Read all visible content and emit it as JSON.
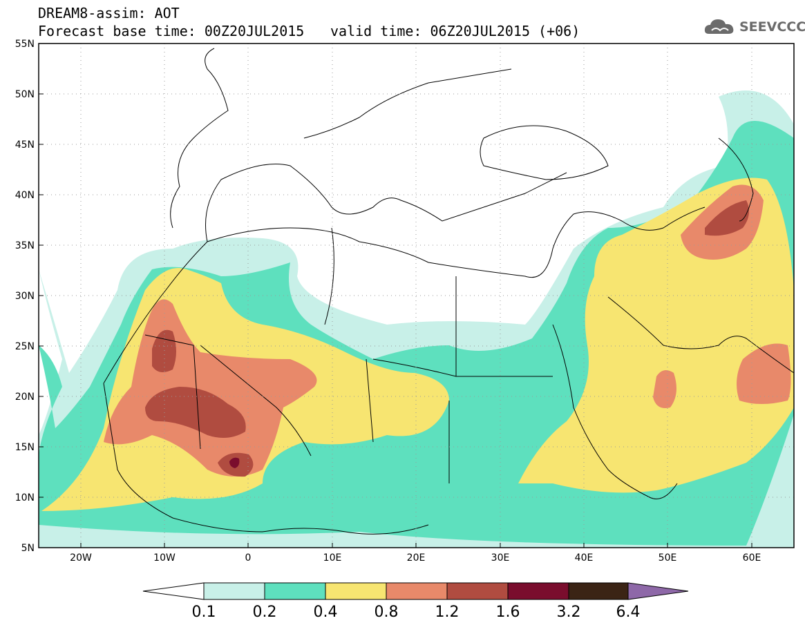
{
  "header": {
    "title": "DREAM8-assim: AOT",
    "base_time": "Forecast base time: 00Z20JUL2015",
    "valid_time": "valid time: 06Z20JUL2015 (+06)"
  },
  "logo": {
    "text": "SEEVCCC",
    "icon": "cloud-icon",
    "color": "#6b6b6b"
  },
  "axes": {
    "lat_labels": [
      "55N",
      "50N",
      "45N",
      "40N",
      "35N",
      "30N",
      "25N",
      "20N",
      "15N",
      "10N",
      "5N"
    ],
    "lon_labels": [
      "20W",
      "10W",
      "0",
      "10E",
      "20E",
      "30E",
      "40E",
      "50E",
      "60E"
    ]
  },
  "legend": {
    "levels": [
      "0.1",
      "0.2",
      "0.4",
      "0.8",
      "1.2",
      "1.6",
      "3.2",
      "6.4"
    ],
    "colors": [
      "#c8f0e8",
      "#5ee0be",
      "#f7e571",
      "#e8896a",
      "#b04c40",
      "#7a0d2d",
      "#3b2415",
      "#8e68a8"
    ]
  }
}
